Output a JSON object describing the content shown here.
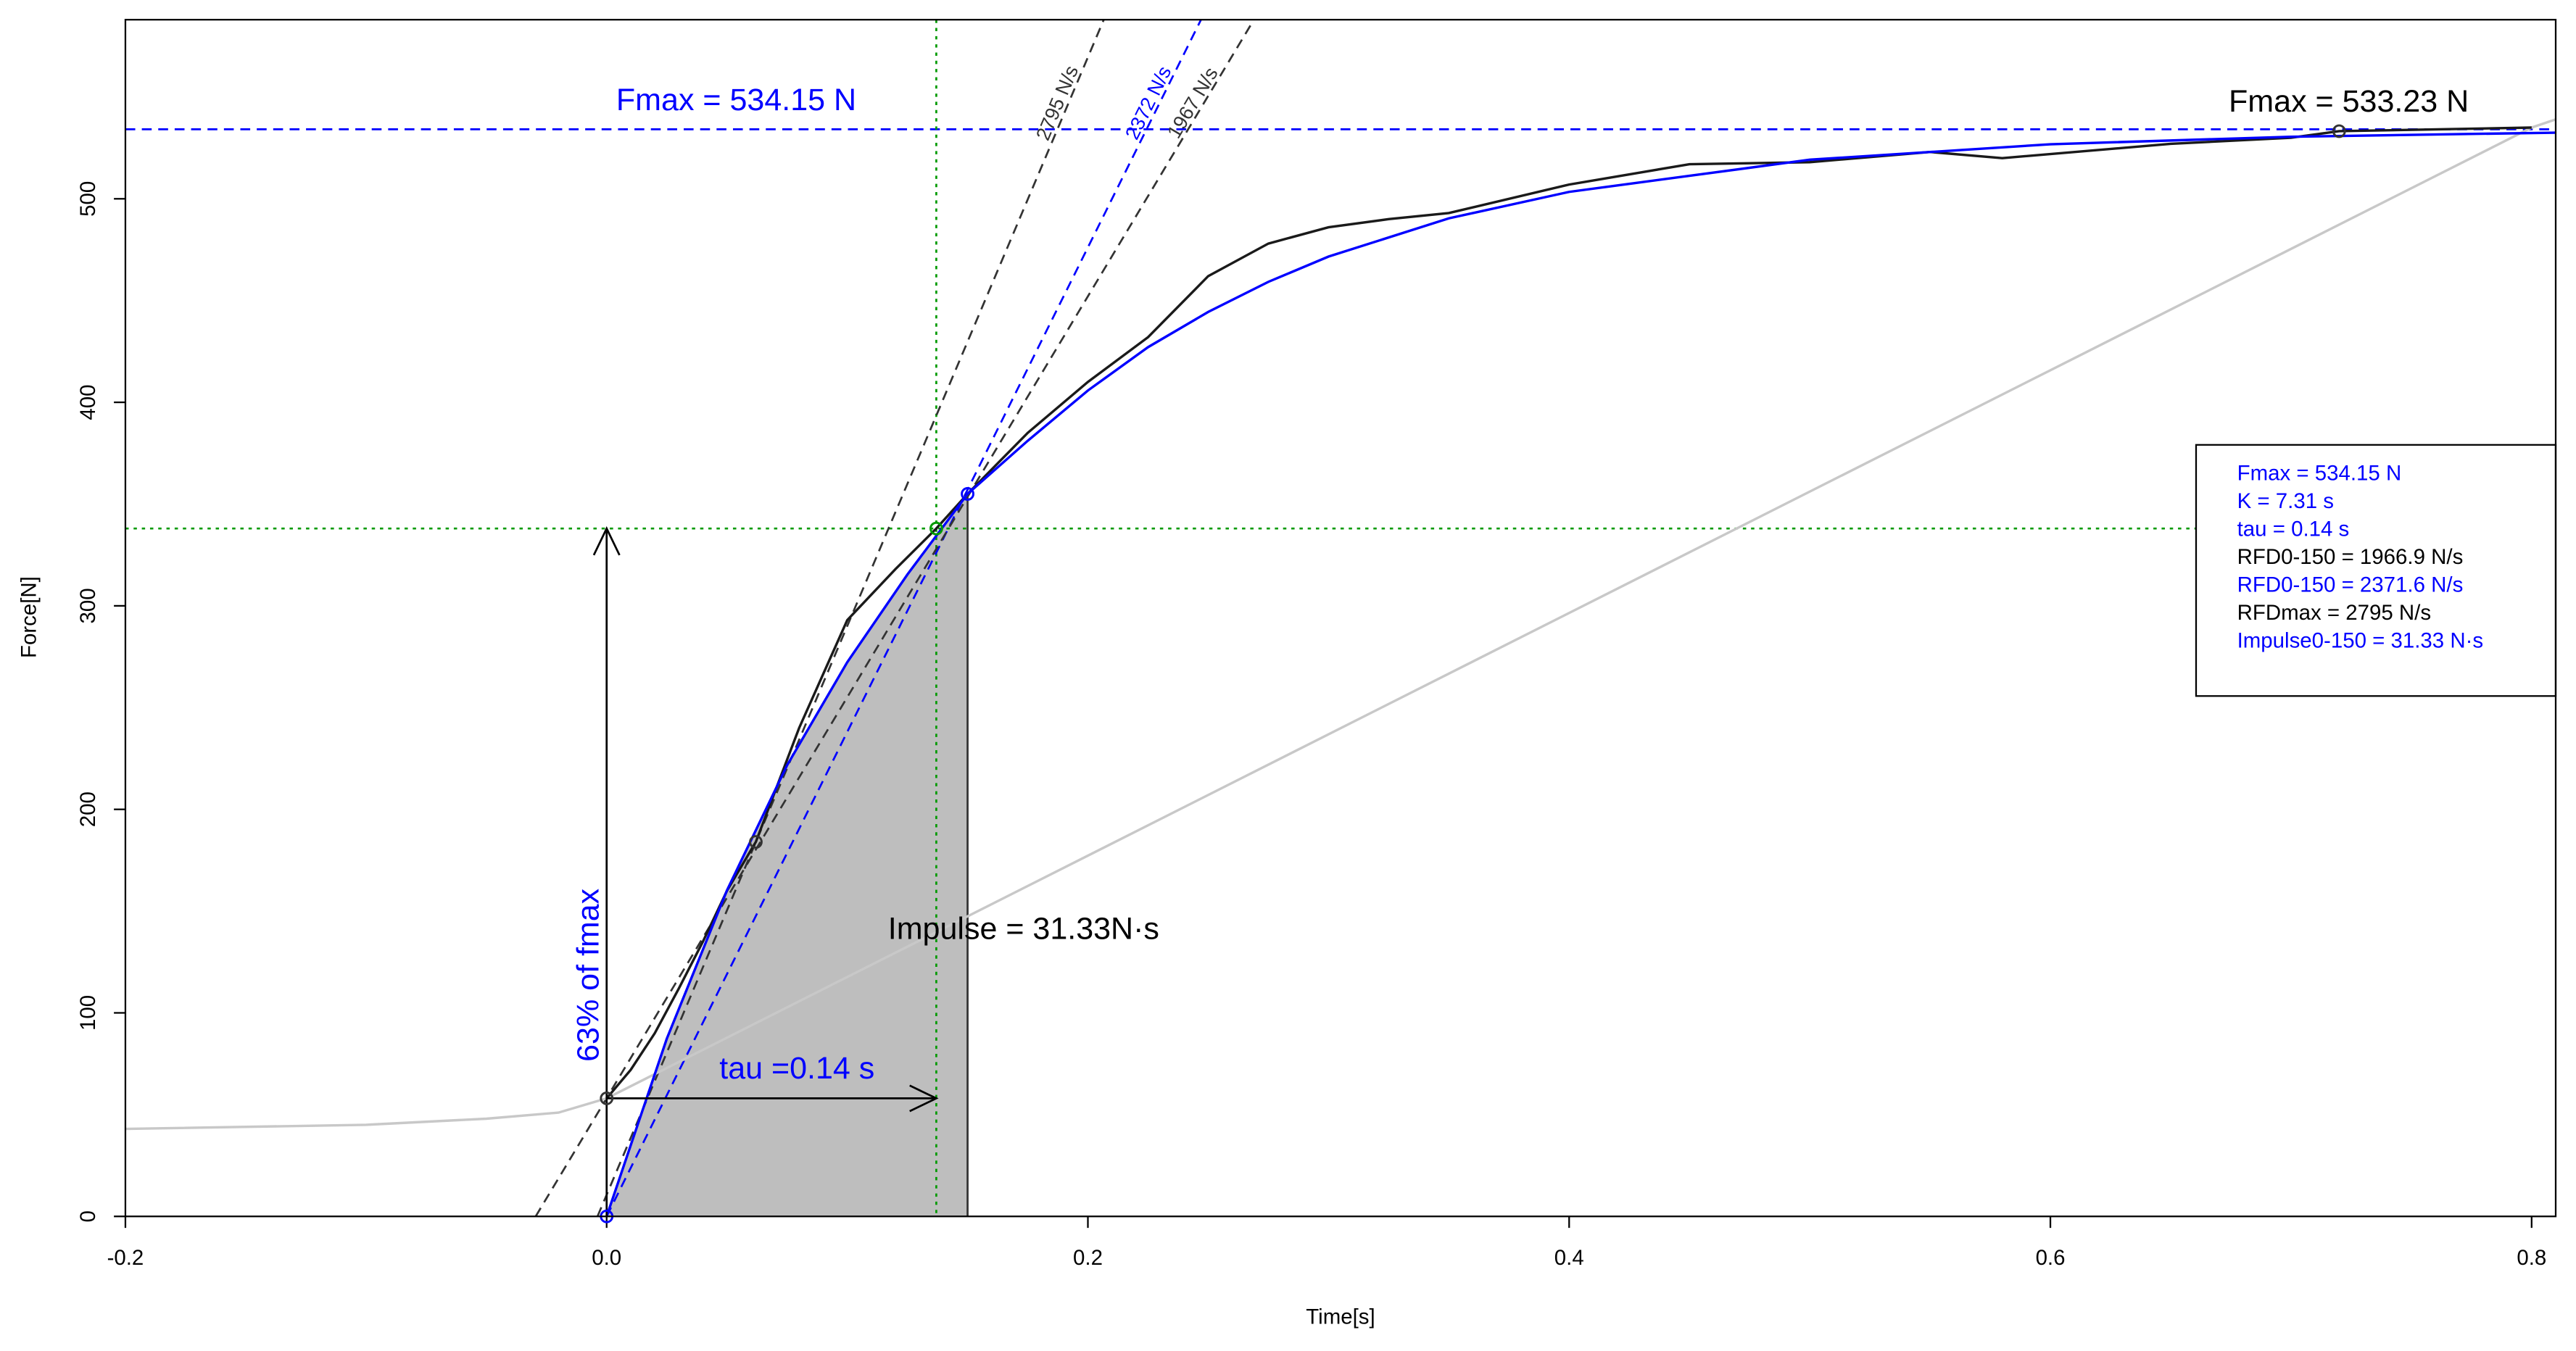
{
  "chart_data": {
    "type": "line",
    "x_label": "Time[s]",
    "y_label": "Force[N]",
    "xlim": [
      -0.2,
      0.81
    ],
    "ylim": [
      0,
      588
    ],
    "xticks": [
      -0.2,
      {
        "value": 0,
        "label": "0.0"
      },
      0.2,
      0.4,
      0.6,
      0.8
    ],
    "yticks": [
      0,
      100,
      200,
      300,
      400,
      500
    ],
    "series": [
      {
        "color": "#c8c8c8",
        "x": [
          -0.2,
          -0.1,
          -0.05,
          -0.02,
          0,
          0.8,
          0.81
        ],
        "values": [
          43,
          45,
          48,
          51,
          58,
          535,
          539
        ]
      },
      {
        "color": "#1a1a1a",
        "x": [
          0,
          0.01,
          0.02,
          0.03,
          0.04,
          0.05,
          0.062,
          0.08,
          0.1,
          0.12,
          0.137,
          0.15,
          0.175,
          0.2,
          0.225,
          0.25,
          0.275,
          0.3,
          0.325,
          0.35,
          0.4,
          0.45,
          0.5,
          0.55,
          0.58,
          0.65,
          0.7,
          0.72,
          0.8
        ],
        "values": [
          58,
          72,
          90,
          112,
          135,
          160,
          184,
          240,
          293,
          318,
          338,
          355,
          385,
          410,
          432,
          462,
          478,
          486,
          490,
          493,
          507,
          517,
          518,
          523,
          520,
          527,
          530,
          533.23,
          535
        ]
      },
      {
        "color": "#0000ff",
        "x": [
          0,
          0.025,
          0.05,
          0.075,
          0.1,
          0.125,
          0.15,
          0.175,
          0.2,
          0.225,
          0.25,
          0.275,
          0.3,
          0.35,
          0.4,
          0.5,
          0.6,
          0.7,
          0.81
        ],
        "values": [
          0,
          87.3,
          160.2,
          221.7,
          272.3,
          315.4,
          355,
          381.1,
          405.8,
          427.1,
          444.4,
          459.2,
          471.6,
          490.4,
          503.4,
          519.2,
          526.8,
          530.5,
          532.5
        ]
      }
    ],
    "area": {
      "color": "#bebebe",
      "x": [
        0,
        0.025,
        0.05,
        0.075,
        0.1,
        0.125,
        0.15
      ],
      "values": [
        0,
        87.3,
        160.2,
        221.7,
        272.3,
        315.4,
        355
      ]
    },
    "tangents": [
      {
        "label": "2795 N/s",
        "color": "#333333",
        "x": [
          -0.0038,
          0.2066
        ],
        "values": [
          0,
          588
        ]
      },
      {
        "label": "2372 N/s",
        "color": "#0000ff",
        "x": [
          0,
          0.247
        ],
        "values": [
          0,
          588
        ]
      },
      {
        "label": "1967 N/s",
        "color": "#333333",
        "x": [
          -0.0295,
          0.269
        ],
        "values": [
          0,
          588
        ]
      }
    ],
    "hlines": [
      {
        "value": 534.15,
        "color": "#0000ff",
        "style": "dashed"
      },
      {
        "value": 338,
        "color": "#009900",
        "style": "dotted"
      }
    ],
    "vlines": [
      {
        "value": 0.137,
        "color": "#009900",
        "style": "dotted"
      },
      {
        "value": 0.15,
        "color": "#333333",
        "style": "solid"
      }
    ],
    "points": [
      {
        "x": 0,
        "y": 58,
        "color": "#333333"
      },
      {
        "x": 0.062,
        "y": 184,
        "color": "#333333"
      },
      {
        "x": 0.137,
        "y": 338,
        "color": "#009900"
      },
      {
        "x": 0.15,
        "y": 355,
        "color": "#0000ff"
      },
      {
        "x": 0.72,
        "y": 533.23,
        "color": "#333333"
      },
      {
        "x": 0,
        "y": 0,
        "color": "#0000ff"
      }
    ],
    "arrows": [
      {
        "x": [
          0,
          0
        ],
        "values": [
          0,
          338
        ]
      },
      {
        "x": [
          0,
          0.137
        ],
        "values": [
          58,
          58
        ]
      }
    ],
    "annotations": [
      {
        "text": "Fmax = 534.15 N",
        "color": "#0000ff"
      },
      {
        "text": "Fmax = 533.23 N",
        "color": "#000000"
      },
      {
        "text": "Impulse = 31.33N·s",
        "color": "#000000"
      },
      {
        "text": "63% of fmax",
        "color": "#0000ff"
      },
      {
        "text": "tau =0.14 s",
        "color": "#0000ff"
      }
    ],
    "legend_box": {
      "lines": [
        {
          "text": "Fmax = 534.15 N",
          "color": "#0000ff"
        },
        {
          "text": "K =  7.31 s",
          "color": "#0000ff"
        },
        {
          "text": "tau =  0.14 s",
          "color": "#0000ff"
        },
        {
          "text": "RFD0-150 = 1966.9 N/s",
          "color": "#000000"
        },
        {
          "text": "RFD0-150 = 2371.6 N/s",
          "color": "#0000ff"
        },
        {
          "text": "RFDmax = 2795 N/s",
          "color": "#000000"
        },
        {
          "text": "Impulse0-150 = 31.33 N·s",
          "color": "#0000ff"
        }
      ]
    }
  }
}
